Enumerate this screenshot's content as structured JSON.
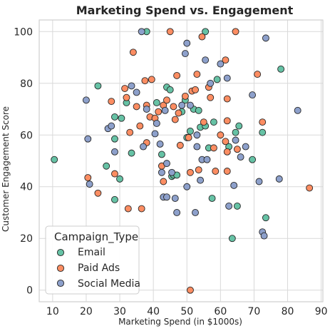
{
  "chart_data": {
    "type": "scatter",
    "title": "Marketing Spend vs. Engagement",
    "xlabel": "Marketing Spend (in $1000s)",
    "ylabel": "Customer Engagement Score",
    "xlim": [
      6,
      90.5
    ],
    "ylim": [
      -4.5,
      104.5
    ],
    "x_ticks": [
      10,
      20,
      30,
      40,
      50,
      60,
      70,
      80,
      90
    ],
    "y_ticks": [
      0,
      20,
      40,
      60,
      80,
      100
    ],
    "grid": true,
    "legend": {
      "title": "Campaign_Type",
      "position": "lower-left"
    },
    "series": [
      {
        "name": "Email",
        "color": "#66c2a5",
        "points": [
          [
            10.5,
            50.5
          ],
          [
            23.5,
            79
          ],
          [
            26,
            48
          ],
          [
            28.5,
            67
          ],
          [
            28.5,
            58.5
          ],
          [
            28.5,
            35
          ],
          [
            30,
            43
          ],
          [
            30.5,
            66.5
          ],
          [
            32,
            72.5
          ],
          [
            33.5,
            53
          ],
          [
            38,
            100
          ],
          [
            41,
            72.5
          ],
          [
            42.5,
            52.5
          ],
          [
            44,
            78.5
          ],
          [
            45,
            77.5
          ],
          [
            45.5,
            44
          ],
          [
            46,
            44.5
          ],
          [
            48.5,
            69
          ],
          [
            49.5,
            73.5
          ],
          [
            50,
            59
          ],
          [
            51,
            61.5
          ],
          [
            52,
            70
          ],
          [
            53.5,
            69.5
          ],
          [
            54,
            63
          ],
          [
            55.5,
            100
          ],
          [
            55.5,
            63.5
          ],
          [
            56.5,
            55
          ],
          [
            57.5,
            35.5
          ],
          [
            58,
            65
          ],
          [
            59,
            81.5
          ],
          [
            64.5,
            61
          ],
          [
            65,
            32.5
          ],
          [
            65.5,
            63.5
          ],
          [
            69.5,
            50.5
          ],
          [
            72.5,
            61
          ],
          [
            73.5,
            28
          ],
          [
            78,
            85.5
          ],
          [
            63.5,
            20
          ],
          [
            62.5,
            55.5
          ],
          [
            47,
            44.5
          ]
        ]
      },
      {
        "name": "Paid Ads",
        "color": "#fc8d62",
        "points": [
          [
            20.5,
            43.5
          ],
          [
            23.5,
            37.5
          ],
          [
            27.5,
            73
          ],
          [
            28.5,
            45
          ],
          [
            31.5,
            78
          ],
          [
            32,
            74.5
          ],
          [
            32.5,
            31.5
          ],
          [
            33,
            61
          ],
          [
            34,
            92
          ],
          [
            35,
            71
          ],
          [
            36,
            63.5
          ],
          [
            36.5,
            31.5
          ],
          [
            37.5,
            81
          ],
          [
            38,
            71.5
          ],
          [
            38,
            57
          ],
          [
            39,
            67
          ],
          [
            39.5,
            81.5
          ],
          [
            40.5,
            66.5
          ],
          [
            41.5,
            69
          ],
          [
            42.5,
            48
          ],
          [
            43,
            42
          ],
          [
            43,
            71.5
          ],
          [
            44,
            73.5
          ],
          [
            45,
            100
          ],
          [
            46,
            71
          ],
          [
            46.5,
            66
          ],
          [
            47,
            83
          ],
          [
            47.5,
            68.5
          ],
          [
            48,
            56
          ],
          [
            49.5,
            75
          ],
          [
            50.5,
            59
          ],
          [
            51,
            45.5
          ],
          [
            51.5,
            77
          ],
          [
            52.5,
            77.5
          ],
          [
            53,
            83.5
          ],
          [
            53.5,
            46.5
          ],
          [
            54.5,
            98
          ],
          [
            55,
            65
          ],
          [
            56.5,
            78.5
          ],
          [
            57,
            74.5
          ],
          [
            58,
            55
          ],
          [
            58.5,
            46
          ],
          [
            60,
            60
          ],
          [
            61.5,
            89
          ],
          [
            61.5,
            57.5
          ],
          [
            62,
            65.5
          ],
          [
            62,
            53.5
          ],
          [
            62,
            46
          ],
          [
            64.5,
            100
          ],
          [
            65,
            54.5
          ],
          [
            71,
            83.5
          ],
          [
            72.5,
            65
          ],
          [
            86.5,
            39.5
          ],
          [
            51,
            0
          ],
          [
            62,
            74
          ]
        ]
      },
      {
        "name": "Social Media",
        "color": "#8da0cb",
        "points": [
          [
            20,
            73.5
          ],
          [
            20.5,
            58.5
          ],
          [
            21,
            41
          ],
          [
            26.5,
            62.5
          ],
          [
            27.5,
            63.5
          ],
          [
            28.5,
            53.5
          ],
          [
            33.5,
            79
          ],
          [
            35,
            76.5
          ],
          [
            36.5,
            100
          ],
          [
            37,
            55.5
          ],
          [
            38,
            70
          ],
          [
            40.5,
            60.5
          ],
          [
            41,
            64.5
          ],
          [
            42,
            56.5
          ],
          [
            42.5,
            45.5
          ],
          [
            43,
            36
          ],
          [
            43.5,
            69.5
          ],
          [
            44,
            49
          ],
          [
            44,
            36
          ],
          [
            45.5,
            45.5
          ],
          [
            46.5,
            35.5
          ],
          [
            47,
            30
          ],
          [
            48.5,
            71.5
          ],
          [
            49.5,
            91.5
          ],
          [
            50,
            40
          ],
          [
            50,
            95.5
          ],
          [
            51,
            71.5
          ],
          [
            52.5,
            30
          ],
          [
            53,
            55.5
          ],
          [
            53,
            60
          ],
          [
            54,
            42.5
          ],
          [
            54.5,
            50.5
          ],
          [
            55.5,
            89
          ],
          [
            56,
            50.5
          ],
          [
            60,
            87.5
          ],
          [
            62,
            82
          ],
          [
            62.5,
            32.5
          ],
          [
            64,
            40.5
          ],
          [
            64.5,
            58
          ],
          [
            66,
            51.5
          ],
          [
            69.5,
            75.5
          ],
          [
            71.5,
            42
          ],
          [
            72.5,
            22.5
          ],
          [
            73,
            21
          ],
          [
            73.5,
            97.5
          ],
          [
            77.5,
            43
          ],
          [
            83,
            69.5
          ],
          [
            57,
            80
          ],
          [
            67.5,
            55.5
          ]
        ]
      }
    ]
  }
}
